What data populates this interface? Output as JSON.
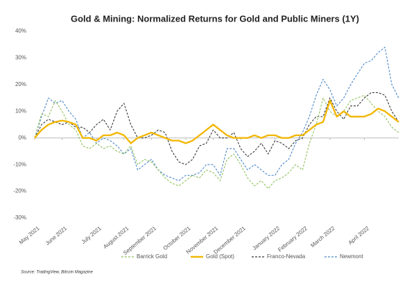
{
  "chart_data": {
    "type": "line",
    "title": "Gold & Mining: Normalized Returns for Gold and Public Miners (1Y)",
    "source": "Source: TradingView, Bitcoin Magazine",
    "categories": [
      "May 2021",
      null,
      null,
      null,
      "June 2021",
      null,
      null,
      null,
      null,
      "July 2021",
      null,
      null,
      null,
      "August 2021",
      null,
      null,
      null,
      "September 2021",
      null,
      null,
      null,
      null,
      "October 2021",
      null,
      null,
      null,
      "November 2021",
      null,
      null,
      null,
      "December 2021",
      null,
      null,
      null,
      null,
      "January 2022",
      null,
      null,
      null,
      "February 2022",
      null,
      null,
      null,
      "March 2022",
      null,
      null,
      null,
      null,
      "April 2022",
      null,
      null,
      null,
      null,
      null
    ],
    "ylim": [
      -30,
      40
    ],
    "yticks": [
      {
        "value": -30,
        "label": "-30%"
      },
      {
        "value": -20,
        "label": "-20%"
      },
      {
        "value": -10,
        "label": "-10%"
      },
      {
        "value": 0,
        "label": "0%"
      },
      {
        "value": 10,
        "label": "10%"
      },
      {
        "value": 20,
        "label": "20%"
      },
      {
        "value": 30,
        "label": "30%"
      },
      {
        "value": 40,
        "label": "40%"
      }
    ],
    "grid": false,
    "legend": "bottom",
    "series": [
      {
        "name": "Barrick Gold",
        "color": "#8fbf5c",
        "dashed": true,
        "values": [
          0,
          9,
          8,
          14,
          10,
          5,
          3,
          -3,
          -4,
          -2,
          -4,
          -3,
          -5,
          -6,
          -3,
          -10,
          -8,
          -9,
          -12,
          -15,
          -17,
          -18,
          -16,
          -14,
          -15,
          -12,
          -13,
          -16,
          -8,
          -6,
          -10,
          -15,
          -18,
          -16,
          -19,
          -16,
          -15,
          -13,
          -10,
          -12,
          -2,
          5,
          15,
          10,
          8,
          10,
          14,
          15,
          16,
          13,
          10,
          8,
          4,
          2
        ]
      },
      {
        "name": "Gold (Spot)",
        "color": "#f2b705",
        "dashed": false,
        "values": [
          0,
          3,
          5,
          6,
          6.5,
          6,
          5,
          0,
          0,
          -1,
          1,
          1,
          2,
          1,
          -2,
          0,
          1,
          2,
          1,
          0,
          -1,
          -1,
          -2,
          -1,
          1,
          3,
          5,
          3,
          1,
          0,
          0,
          0,
          1,
          0,
          1,
          1,
          0,
          0,
          1,
          1,
          3,
          5,
          6,
          14,
          8,
          10,
          8,
          8,
          8,
          9,
          11,
          10,
          8,
          6
        ]
      },
      {
        "name": "Franco-Nevada",
        "color": "#333333",
        "dashed": true,
        "values": [
          0,
          5,
          7,
          6,
          5,
          6,
          4,
          4,
          2,
          5,
          7,
          3,
          10,
          13,
          5,
          0,
          0,
          1,
          3,
          2,
          -5,
          -9,
          -10,
          -8,
          -3,
          -2,
          3,
          0,
          0,
          2,
          -4,
          -7,
          -5,
          -2,
          -6,
          -1,
          -2,
          -4,
          -1,
          0,
          5,
          8,
          8,
          15,
          10,
          7,
          12,
          12,
          15,
          17,
          17,
          16,
          10,
          6
        ]
      },
      {
        "name": "Newmont",
        "color": "#4a86c8",
        "dashed": true,
        "values": [
          0,
          8,
          15,
          13,
          14,
          10,
          7,
          0,
          2,
          -2,
          0,
          -1,
          -3,
          -6,
          -4,
          -12,
          -10,
          -8,
          -12,
          -14,
          -15,
          -16,
          -14,
          -14,
          -13,
          -10,
          -10,
          -14,
          -4,
          -4,
          -8,
          -12,
          -10,
          -12,
          -14,
          -14,
          -10,
          -8,
          -2,
          2,
          8,
          16,
          22,
          18,
          12,
          15,
          20,
          24,
          28,
          29,
          32,
          34,
          20,
          15
        ]
      }
    ]
  }
}
